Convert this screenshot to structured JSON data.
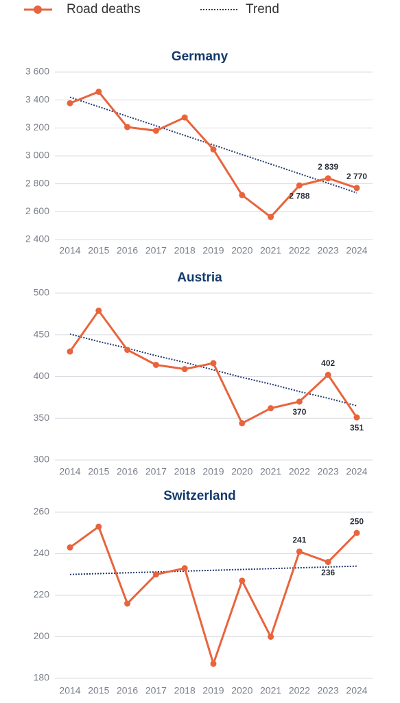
{
  "chart_data": [
    {
      "type": "line",
      "title": "Germany",
      "categories": [
        "2014",
        "2015",
        "2016",
        "2017",
        "2018",
        "2019",
        "2020",
        "2021",
        "2022",
        "2023",
        "2024"
      ],
      "series": [
        {
          "name": "Road deaths",
          "color": "#e8643c",
          "values": [
            3377,
            3459,
            3206,
            3180,
            3275,
            3046,
            2719,
            2562,
            2788,
            2839,
            2770
          ],
          "value_labels": [
            null,
            null,
            null,
            null,
            null,
            null,
            null,
            null,
            "2 788",
            "2 839",
            "2 770"
          ]
        },
        {
          "name": "Trend",
          "color": "#1f3a6e",
          "dash": "dotted",
          "values": [
            3420,
            3352,
            3283,
            3215,
            3146,
            3078,
            3009,
            2941,
            2872,
            2804,
            2735
          ]
        }
      ],
      "ylim": [
        2400,
        3600
      ],
      "yticks": [
        {
          "value": 2400,
          "label": "2 400"
        },
        {
          "value": 2600,
          "label": "2 600"
        },
        {
          "value": 2800,
          "label": "2 800"
        },
        {
          "value": 3000,
          "label": "3 000"
        },
        {
          "value": 3200,
          "label": "3 200"
        },
        {
          "value": 3400,
          "label": "3 400"
        },
        {
          "value": 3600,
          "label": "3 600"
        }
      ],
      "grid": true
    },
    {
      "type": "line",
      "title": "Austria",
      "categories": [
        "2014",
        "2015",
        "2016",
        "2017",
        "2018",
        "2019",
        "2020",
        "2021",
        "2022",
        "2023",
        "2024"
      ],
      "series": [
        {
          "name": "Road deaths",
          "color": "#e8643c",
          "values": [
            430,
            479,
            432,
            414,
            409,
            416,
            344,
            362,
            370,
            402,
            351
          ],
          "value_labels": [
            null,
            null,
            null,
            null,
            null,
            null,
            null,
            null,
            "370",
            "402",
            "351"
          ]
        },
        {
          "name": "Trend",
          "color": "#1f3a6e",
          "dash": "dotted",
          "values": [
            451,
            442,
            434,
            425,
            417,
            408,
            399,
            391,
            382,
            374,
            365
          ]
        }
      ],
      "ylim": [
        300,
        500
      ],
      "yticks": [
        300,
        350,
        400,
        450,
        500
      ],
      "grid": true
    },
    {
      "type": "line",
      "title": "Switzerland",
      "categories": [
        "2014",
        "2015",
        "2016",
        "2017",
        "2018",
        "2019",
        "2020",
        "2021",
        "2022",
        "2023",
        "2024"
      ],
      "series": [
        {
          "name": "Road deaths",
          "color": "#e8643c",
          "values": [
            243,
            253,
            216,
            230,
            233,
            187,
            227,
            200,
            241,
            236,
            250
          ],
          "value_labels": [
            null,
            null,
            null,
            null,
            null,
            null,
            null,
            null,
            "241",
            "236",
            "250"
          ]
        },
        {
          "name": "Trend",
          "color": "#1f3a6e",
          "dash": "dotted",
          "values": [
            230,
            230.4,
            230.8,
            231.2,
            231.6,
            232,
            232.4,
            232.8,
            233.2,
            233.6,
            234
          ]
        }
      ],
      "ylim": [
        180,
        260
      ],
      "yticks": [
        180,
        200,
        220,
        240,
        260
      ],
      "grid": true
    }
  ]
}
